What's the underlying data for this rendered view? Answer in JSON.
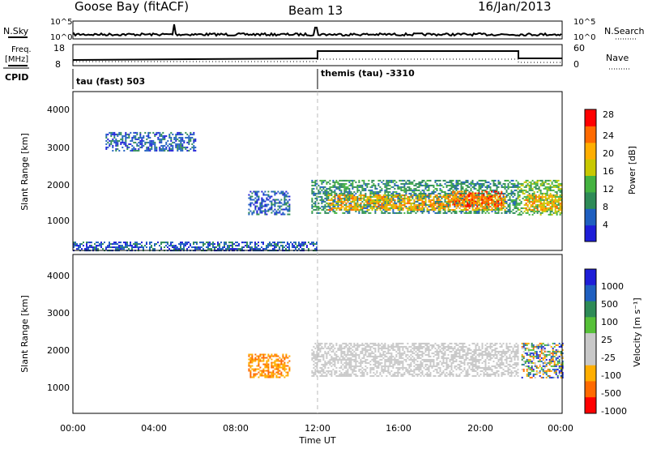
{
  "header": {
    "station": "Goose Bay (fitACF)",
    "beam": "Beam 13",
    "date": "16/Jan/2013"
  },
  "top_panels": {
    "nsky_label": "N.Sky",
    "nsky_ticks": [
      "10^5",
      "10^0"
    ],
    "nsearch_label": "N.Search",
    "freq_label": "Freq.",
    "freq_unit": "[MHz]",
    "freq_ticks": [
      "18",
      "8"
    ],
    "nave_ticks": [
      "60",
      "0"
    ],
    "nave_label": "Nave",
    "cpid_label": "CPID",
    "cpid_modes": [
      "tau (fast) 503",
      "themis (tau) -3310"
    ]
  },
  "power_panel": {
    "ylabel": "Slant Range [km]",
    "yticks": [
      "4000",
      "3000",
      "2000",
      "1000"
    ],
    "colorbar_label": "Power [dB]",
    "colorbar_ticks": [
      "28",
      "24",
      "20",
      "16",
      "12",
      "8",
      "4"
    ],
    "colors": [
      "#1e1ed8",
      "#1f5fc0",
      "#2e8b57",
      "#44b340",
      "#c8c800",
      "#ffae00",
      "#ff6a00",
      "#ff0000"
    ]
  },
  "velocity_panel": {
    "ylabel": "Slant Range [km]",
    "yticks": [
      "4000",
      "3000",
      "2000",
      "1000"
    ],
    "colorbar_label": "Velocity [m s⁻¹]",
    "colorbar_ticks": [
      "1000",
      "500",
      "100",
      "25",
      "-25",
      "-100",
      "-500",
      "-1000"
    ],
    "colors": [
      "#1e1ed8",
      "#1f5fc0",
      "#2e8b57",
      "#56c038",
      "#c8c8c8",
      "#c8c8c8",
      "#ffae00",
      "#ff6a00",
      "#ff0000"
    ]
  },
  "xaxis": {
    "ticks": [
      "00:00",
      "04:00",
      "08:00",
      "12:00",
      "16:00",
      "20:00",
      "00:00"
    ],
    "label": "Time UT"
  },
  "chart_data": [
    {
      "type": "heatmap",
      "title": "Power",
      "xlabel": "Time UT",
      "ylabel": "Slant Range [km]",
      "xlim": [
        "00:00",
        "24:00"
      ],
      "ylim": [
        180,
        4500
      ],
      "colorbar": {
        "label": "Power [dB]",
        "range": [
          0,
          32
        ],
        "ticks": [
          4,
          8,
          12,
          16,
          20,
          24,
          28
        ]
      },
      "regions": [
        {
          "t0": 1.6,
          "t1": 6.0,
          "r0": 2900,
          "r1": 3400,
          "level": 1
        },
        {
          "t0": 8.6,
          "t1": 10.6,
          "r0": 1150,
          "r1": 1800,
          "level": 1
        },
        {
          "t0": 0.0,
          "t1": 12.0,
          "r0": 190,
          "r1": 420,
          "level": 1
        },
        {
          "t0": 11.7,
          "t1": 21.8,
          "r0": 1200,
          "r1": 2100,
          "level": 2
        },
        {
          "t0": 12.5,
          "t1": 21.2,
          "r0": 1300,
          "r1": 1700,
          "level": 5
        },
        {
          "t0": 18.6,
          "t1": 21.0,
          "r0": 1400,
          "r1": 1800,
          "level": 6
        },
        {
          "t0": 21.8,
          "t1": 24.0,
          "r0": 1150,
          "r1": 2100,
          "level": 3
        },
        {
          "t0": 22.2,
          "t1": 24.0,
          "r0": 1300,
          "r1": 1700,
          "level": 5
        }
      ]
    },
    {
      "type": "heatmap",
      "title": "Velocity",
      "xlabel": "Time UT",
      "ylabel": "Slant Range [km]",
      "xlim": [
        "00:00",
        "24:00"
      ],
      "ylim": [
        180,
        4500
      ],
      "colorbar": {
        "label": "Velocity [m s⁻¹]",
        "ticks": [
          1000,
          500,
          100,
          25,
          -25,
          -100,
          -500,
          -1000
        ]
      },
      "regions": [
        {
          "t0": 8.6,
          "t1": 10.6,
          "r0": 1150,
          "r1": 1800,
          "category": "-500"
        },
        {
          "t0": 11.7,
          "t1": 21.8,
          "r0": 1200,
          "r1": 2100,
          "category": "ground"
        },
        {
          "t0": 22.0,
          "t1": 24.0,
          "r0": 1150,
          "r1": 2100,
          "category": "mixed"
        }
      ]
    }
  ]
}
